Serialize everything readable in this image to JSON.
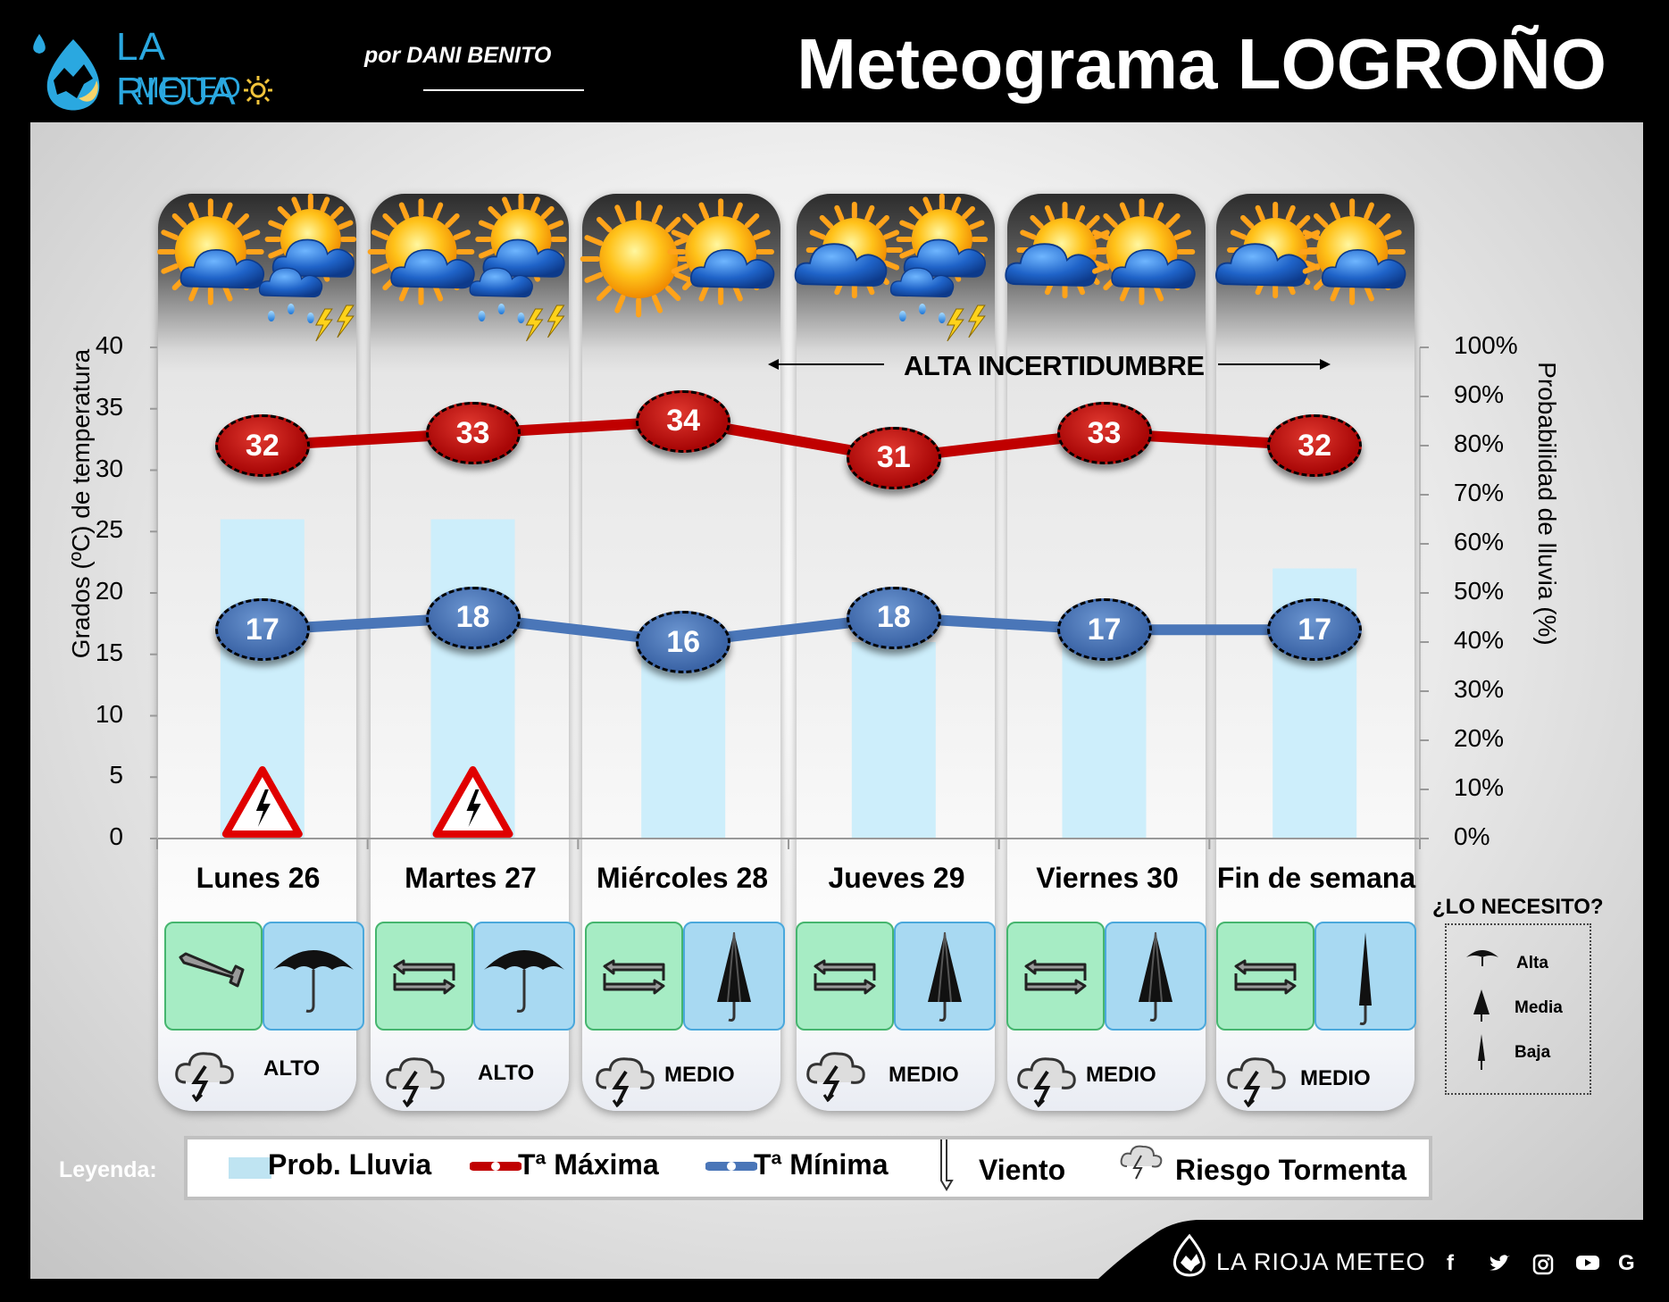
{
  "header": {
    "logo_line1": "LA RIOJA",
    "logo_line2": "METEO",
    "byline": "por DANI BENITO",
    "title": "Meteograma LOGROÑO"
  },
  "colors": {
    "tmax": "#c00000",
    "tmin": "#4a76b8",
    "rain_bar": "#cdeefb",
    "wind_box": "#a6ecc4",
    "umbrella_box": "#a8d9f2"
  },
  "chart_data": {
    "type": "line",
    "categories": [
      "Lunes 26",
      "Martes 27",
      "Miércoles 28",
      "Jueves 29",
      "Viernes 30",
      "Fin de semana"
    ],
    "series": [
      {
        "name": "Tª Máxima",
        "axis": "left",
        "values": [
          32,
          33,
          34,
          31,
          33,
          32
        ]
      },
      {
        "name": "Tª Mínima",
        "axis": "left",
        "values": [
          17,
          18,
          16,
          18,
          17,
          17
        ]
      },
      {
        "name": "Prob. Lluvia",
        "axis": "right",
        "type": "bar",
        "values": [
          65,
          65,
          40,
          40,
          40,
          55
        ]
      }
    ],
    "ylabel": "Grados (ºC) de temperatura",
    "y2label": "Probabilidad de lluvia (%)",
    "ylim": [
      0,
      40
    ],
    "y2lim": [
      0,
      100
    ],
    "yticks": [
      "40",
      "35",
      "30",
      "25",
      "20",
      "15",
      "10",
      "5",
      "0"
    ],
    "y2ticks": [
      "100%",
      "90%",
      "80%",
      "70%",
      "60%",
      "50%",
      "40%",
      "30%",
      "20%",
      "10%",
      "0%"
    ],
    "annotation": "ALTA INCERTIDUMBRE",
    "warning_days": [
      "Lunes 26",
      "Martes 27"
    ]
  },
  "days": [
    {
      "label": "Lunes 26",
      "tmax": "32",
      "tmin": "17",
      "storm_risk": "ALTO",
      "umbrella": "Alta",
      "wind": "NW",
      "sky": [
        "partly-sunny-icon",
        "storm-cloud-icon"
      ]
    },
    {
      "label": "Martes 27",
      "tmax": "33",
      "tmin": "18",
      "storm_risk": "ALTO",
      "umbrella": "Alta",
      "wind": "variable",
      "sky": [
        "partly-sunny-icon",
        "storm-cloud-icon"
      ]
    },
    {
      "label": "Miércoles 28",
      "tmax": "34",
      "tmin": "16",
      "storm_risk": "MEDIO",
      "umbrella": "Media",
      "wind": "variable",
      "sky": [
        "sun-icon",
        "partly-sunny-icon"
      ]
    },
    {
      "label": "Jueves 29",
      "tmax": "31",
      "tmin": "18",
      "storm_risk": "MEDIO",
      "umbrella": "Media",
      "wind": "variable",
      "sky": [
        "cloud-sun-icon",
        "storm-cloud-icon"
      ]
    },
    {
      "label": "Viernes 30",
      "tmax": "33",
      "tmin": "17",
      "storm_risk": "MEDIO",
      "umbrella": "Media",
      "wind": "variable",
      "sky": [
        "cloud-sun-icon",
        "partly-sunny-icon"
      ]
    },
    {
      "label": "Fin de semana",
      "tmax": "32",
      "tmin": "17",
      "storm_risk": "MEDIO",
      "umbrella": "Baja",
      "wind": "variable",
      "sky": [
        "cloud-sun-icon",
        "partly-sunny-icon"
      ]
    }
  ],
  "need": {
    "title": "¿LO NECESITO?",
    "levels": [
      "Alta",
      "Media",
      "Baja"
    ]
  },
  "legend": {
    "label": "Leyenda:",
    "rain": "Prob. Lluvia",
    "tmax": "Tª Máxima",
    "tmin": "Tª Mínima",
    "wind": "Viento",
    "storm": "Riesgo Tormenta"
  },
  "footer": {
    "brand": "LA RIOJA METEO",
    "social": [
      "facebook-icon",
      "twitter-icon",
      "instagram-icon",
      "youtube-icon",
      "google-icon"
    ]
  }
}
